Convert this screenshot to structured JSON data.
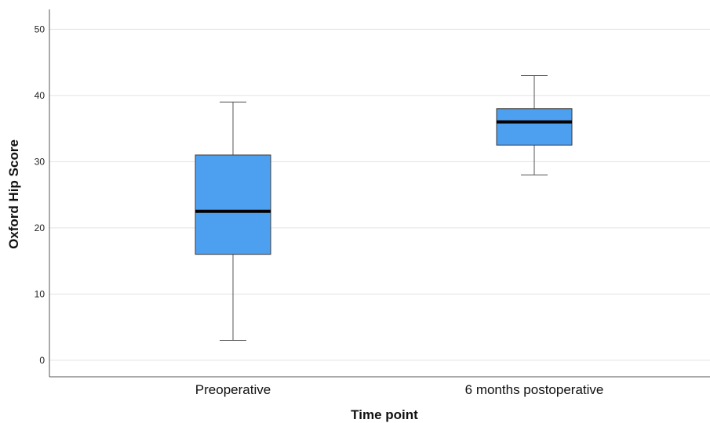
{
  "chart_data": {
    "type": "box",
    "xlabel": "Time point",
    "ylabel": "Oxford Hip Score",
    "ylim": [
      -2.5,
      53
    ],
    "yticks": [
      0,
      10,
      20,
      30,
      40,
      50
    ],
    "grid": true,
    "categories": [
      "Preoperative",
      "6 months postoperative"
    ],
    "boxes": [
      {
        "category": "Preoperative",
        "min": 3,
        "q1": 16,
        "median": 22.5,
        "q3": 31,
        "max": 39
      },
      {
        "category": "6 months postoperative",
        "min": 28,
        "q1": 32.5,
        "median": 36,
        "q3": 38,
        "max": 43
      }
    ],
    "colors": {
      "box_fill": "#4d9ff0",
      "box_stroke": "#3a3a3a",
      "median": "#000000",
      "grid": "#e3e3e3",
      "axis": "#555555"
    }
  }
}
